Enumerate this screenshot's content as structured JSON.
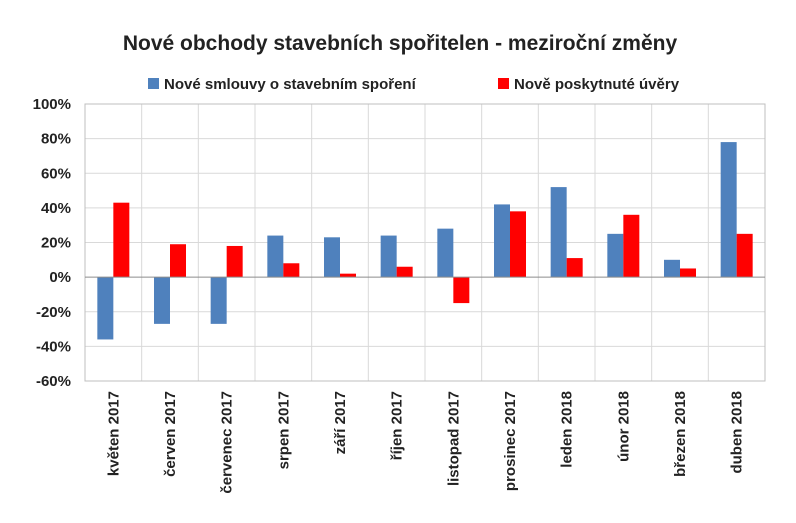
{
  "chart_data": {
    "type": "bar",
    "title": "Nové obchody stavebních spořitelen - meziroční změny",
    "categories": [
      "květen 2017",
      "červen 2017",
      "červenec 2017",
      "srpen 2017",
      "září 2017",
      "říjen 2017",
      "listopad 2017",
      "prosinec 2017",
      "leden 2018",
      "únor 2018",
      "březen 2018",
      "duben 2018"
    ],
    "series": [
      {
        "name": "Nové smlouvy o stavebním spoření",
        "color": "#4F81BD",
        "values": [
          -36,
          -27,
          -27,
          24,
          23,
          24,
          28,
          42,
          52,
          25,
          10,
          78
        ]
      },
      {
        "name": "Nově poskytnuté úvěry",
        "color": "#FF0000",
        "values": [
          43,
          19,
          18,
          8,
          2,
          6,
          -15,
          38,
          11,
          36,
          5,
          25
        ]
      }
    ],
    "ylim": [
      -60,
      100
    ],
    "yticks": [
      -60,
      -40,
      -20,
      0,
      20,
      40,
      60,
      80,
      100
    ],
    "ytick_labels": [
      "-60%",
      "-40%",
      "-20%",
      "0%",
      "20%",
      "40%",
      "60%",
      "80%",
      "100%"
    ],
    "legend": "top",
    "grid": true
  }
}
